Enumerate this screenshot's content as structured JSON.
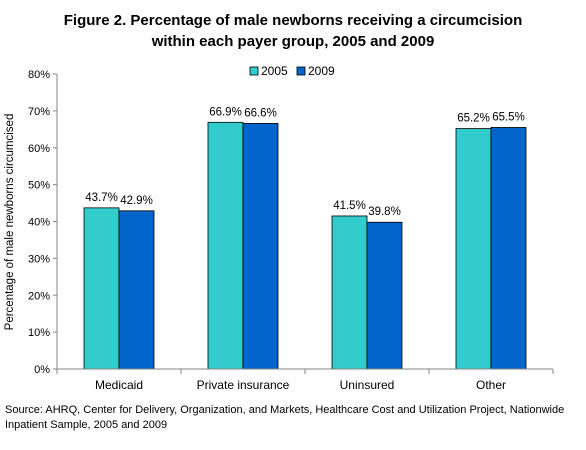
{
  "chart_data": {
    "type": "bar",
    "title": "Figure 2. Percentage of male newborns receiving a circumcision",
    "subtitle": "within each payer group, 2005 and 2009",
    "ylabel": "Percentage of male newborns circumcised",
    "xlabel": "",
    "ylim": [
      0,
      80
    ],
    "yticks": [
      "0%",
      "10%",
      "20%",
      "30%",
      "40%",
      "50%",
      "60%",
      "70%",
      "80%"
    ],
    "ytick_values": [
      0,
      10,
      20,
      30,
      40,
      50,
      60,
      70,
      80
    ],
    "categories": [
      "Medicaid",
      "Private insurance",
      "Uninsured",
      "Other"
    ],
    "series": [
      {
        "name": "2005",
        "color": "#33CCCC",
        "values": [
          43.7,
          66.9,
          41.5,
          65.2
        ],
        "labels": [
          "43.7%",
          "66.9%",
          "41.5%",
          "65.2%"
        ]
      },
      {
        "name": "2009",
        "color": "#0066CC",
        "values": [
          42.9,
          66.6,
          39.8,
          65.5
        ],
        "labels": [
          "42.9%",
          "66.6%",
          "39.8%",
          "65.5%"
        ]
      }
    ],
    "legend_position": "top-right",
    "grid": false
  },
  "source_note": "Source: AHRQ, Center for Delivery, Organization, and Markets, Healthcare Cost and Utilization Project, Nationwide Inpatient Sample, 2005 and 2009"
}
